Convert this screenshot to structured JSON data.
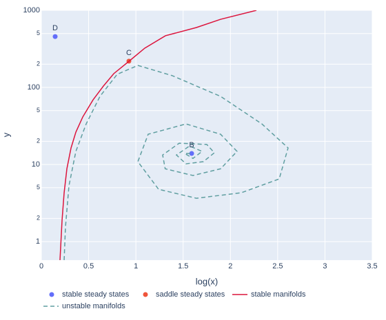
{
  "chart_data": {
    "type": "scatter",
    "xlabel": "log(x)",
    "ylabel": "y",
    "xlim": [
      0,
      3.5
    ],
    "ylim": [
      0.575,
      1000
    ],
    "ylog": true,
    "grid": true,
    "legend": "bottom",
    "xticks": [
      0,
      0.5,
      1,
      1.5,
      2,
      2.5,
      3,
      3.5
    ],
    "yticks": [
      1,
      2,
      5,
      10,
      {
        "value": 20,
        "label": "2"
      },
      {
        "value": 50,
        "label": "5"
      },
      100,
      {
        "value": 200,
        "label": "2"
      },
      {
        "value": 500,
        "label": "5"
      },
      1000
    ],
    "series": [
      {
        "name": "stable steady states",
        "color": "#636efa",
        "mode": "markers",
        "x": [
          0.146,
          1.59
        ],
        "values": [
          457,
          13.9
        ],
        "labels": [
          "D",
          "B"
        ]
      },
      {
        "name": "saddle steady states",
        "color": "#ef553b",
        "mode": "markers",
        "x": [
          0.926
        ],
        "values": [
          219
        ],
        "labels": [
          "C"
        ]
      },
      {
        "name": "stable manifolds",
        "color": "#dc143c",
        "mode": "lines",
        "dash": false,
        "x": [
          0.197,
          0.219,
          0.241,
          0.27,
          0.314,
          0.365,
          0.4375,
          0.547,
          0.656,
          0.766,
          0.926,
          1.094,
          1.3125,
          1.64,
          1.896,
          2.275
        ],
        "values": [
          0.574,
          1.89,
          4.3,
          8.8,
          16.4,
          26.3,
          41.3,
          69,
          104,
          151,
          218,
          323,
          468,
          598,
          765,
          1000
        ]
      },
      {
        "name": "unstable manifolds",
        "color": "#5f9ea0",
        "mode": "lines",
        "dash": true,
        "x": [
          0.241,
          0.255,
          0.292,
          0.365,
          0.474,
          0.62,
          0.802,
          1.021,
          1.385,
          1.896,
          2.333,
          2.61,
          2.516,
          2.115,
          1.64,
          1.24,
          1.021,
          1.13,
          1.53,
          1.896,
          2.07,
          1.896,
          1.604,
          1.31,
          1.283,
          1.458,
          1.75,
          1.83,
          1.714,
          1.53,
          1.429,
          1.568,
          1.7,
          1.604,
          1.517,
          1.59
        ],
        "values": [
          0.574,
          1.54,
          5.3,
          14.8,
          33.6,
          76.5,
          148,
          193,
          142,
          76.5,
          33.6,
          16.4,
          6.5,
          4.3,
          3.65,
          4.77,
          10.9,
          24.7,
          33.6,
          24.7,
          14.8,
          8.8,
          7.2,
          8.8,
          13.3,
          18.9,
          18.2,
          14.2,
          10.9,
          10.2,
          13.3,
          17.4,
          14.8,
          12.0,
          13.9,
          13.9
        ]
      }
    ]
  }
}
